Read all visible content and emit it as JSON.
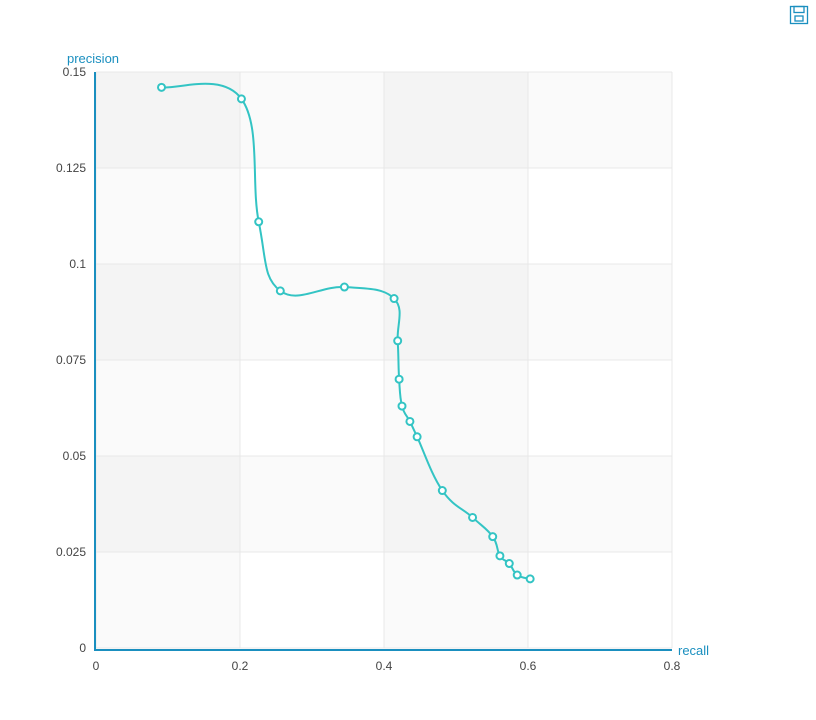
{
  "toolbar": {
    "save_icon": "save-as-image-icon"
  },
  "colors": {
    "line": "#33c4c4",
    "axis": "#1a8fbf",
    "grid": "#e8e8e8",
    "band_dark": "#f4f4f4",
    "band_light": "#fafafa",
    "tick_text": "#444444"
  },
  "chart_data": {
    "type": "line",
    "smooth": true,
    "xlabel": "recall",
    "ylabel": "precision",
    "xlim": [
      0,
      0.8
    ],
    "ylim": [
      0,
      0.15
    ],
    "x_ticks": [
      "0",
      "0.2",
      "0.4",
      "0.6",
      "0.8"
    ],
    "y_ticks": [
      "0",
      "0.025",
      "0.05",
      "0.075",
      "0.1",
      "0.125",
      "0.15"
    ],
    "grid": true,
    "series": [
      {
        "x": [
          0.091,
          0.202,
          0.226,
          0.256,
          0.345,
          0.414,
          0.419,
          0.421,
          0.425,
          0.436,
          0.446,
          0.481,
          0.523,
          0.551,
          0.561,
          0.574,
          0.585,
          0.603
        ],
        "y": [
          0.146,
          0.143,
          0.111,
          0.093,
          0.094,
          0.091,
          0.08,
          0.07,
          0.063,
          0.059,
          0.055,
          0.041,
          0.034,
          0.029,
          0.024,
          0.022,
          0.019,
          0.018
        ]
      }
    ]
  }
}
